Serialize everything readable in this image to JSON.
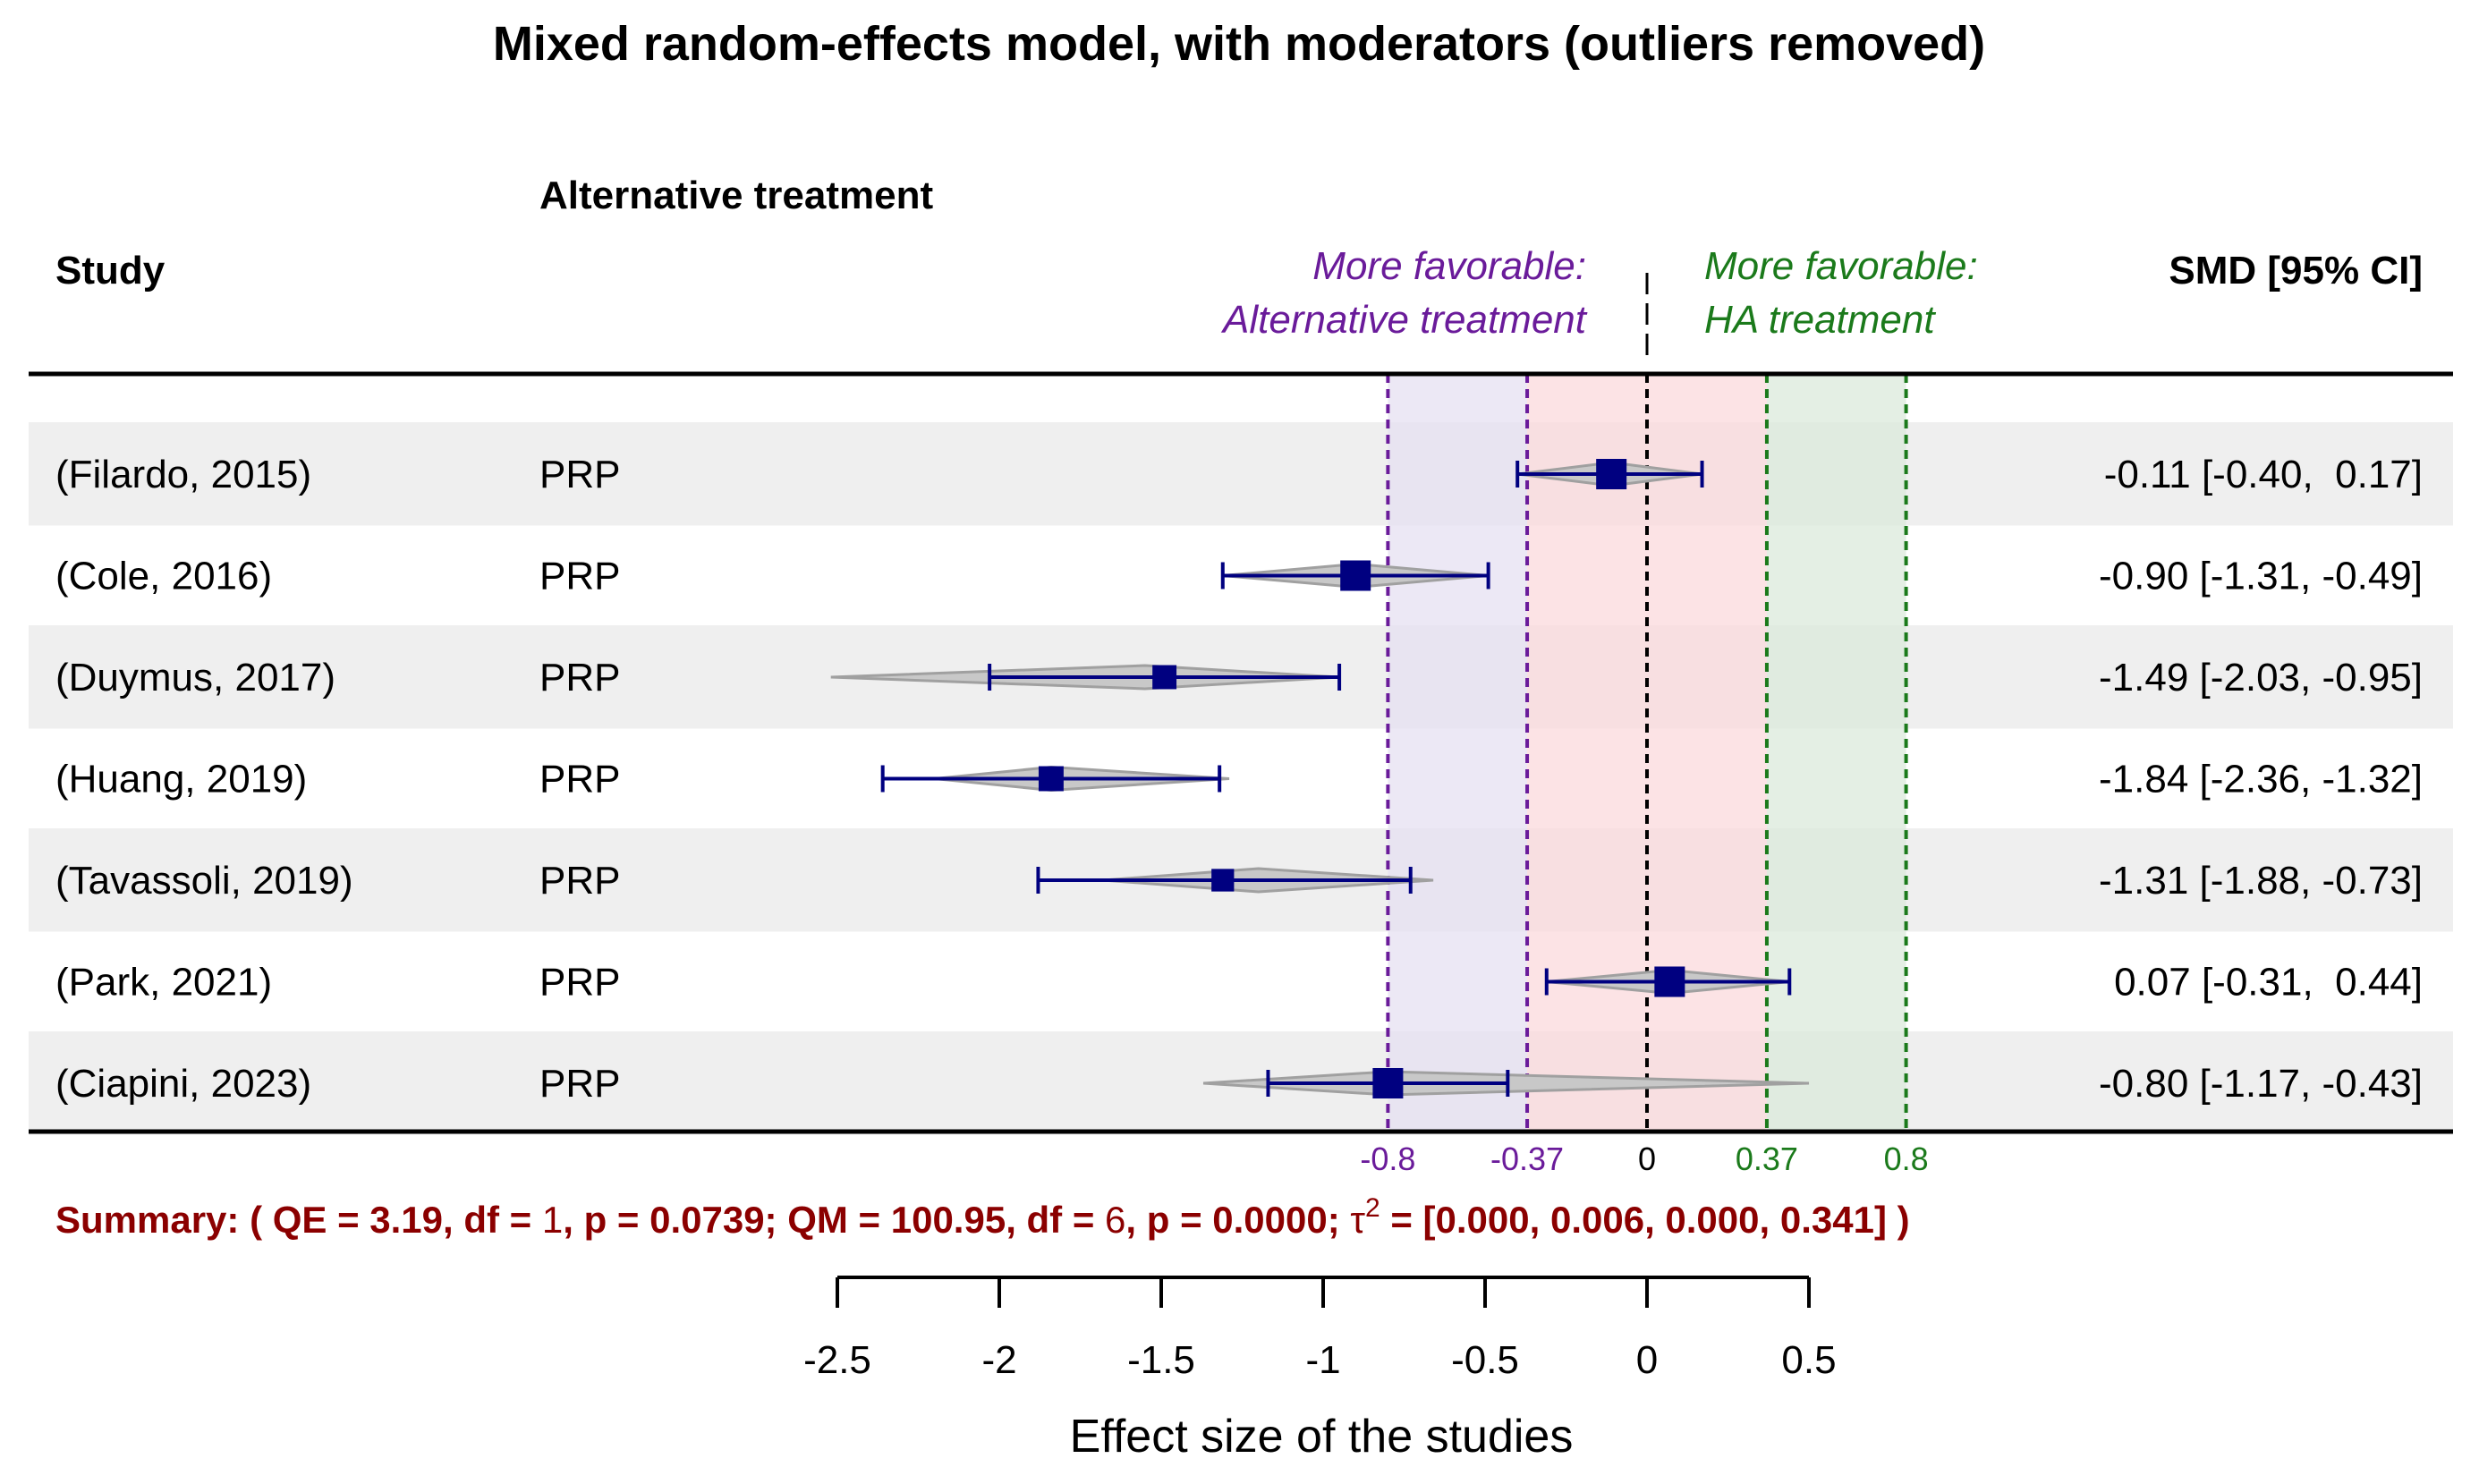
{
  "chart_data": {
    "type": "forest",
    "title": "Mixed random-effects model, with moderators (outliers removed)",
    "headers": {
      "study": "Study",
      "moderator": "Alternative treatment",
      "estimate": "SMD [95% CI]"
    },
    "favor_left": {
      "line1": "More favorable:",
      "line2": "Alternative treatment"
    },
    "favor_right": {
      "line1": "More favorable:",
      "line2": "HA treatment"
    },
    "studies": [
      {
        "study": "(Filardo, 2015)",
        "treatment": "PRP",
        "smd": -0.11,
        "lower": -0.4,
        "upper": 0.17,
        "label": "-0.11 [-0.40,  0.17]",
        "pred_center": -0.11,
        "pred_low": -0.4,
        "pred_high": 0.17
      },
      {
        "study": "(Cole, 2016)",
        "treatment": "PRP",
        "smd": -0.9,
        "lower": -1.31,
        "upper": -0.49,
        "label": "-0.90 [-1.31, -0.49]",
        "pred_center": -0.9,
        "pred_low": -1.31,
        "pred_high": -0.49
      },
      {
        "study": "(Duymus, 2017)",
        "treatment": "PRP",
        "smd": -1.49,
        "lower": -2.03,
        "upper": -0.95,
        "label": "-1.49 [-2.03, -0.95]",
        "pred_center": -1.55,
        "pred_low": -2.52,
        "pred_high": -0.95
      },
      {
        "study": "(Huang, 2019)",
        "treatment": "PRP",
        "smd": -1.84,
        "lower": -2.36,
        "upper": -1.32,
        "label": "-1.84 [-2.36, -1.32]",
        "pred_center": -1.84,
        "pred_low": -2.2,
        "pred_high": -1.29
      },
      {
        "study": "(Tavassoli, 2019)",
        "treatment": "PRP",
        "smd": -1.31,
        "lower": -1.88,
        "upper": -0.73,
        "label": "-1.31 [-1.88, -0.73]",
        "pred_center": -1.2,
        "pred_low": -1.68,
        "pred_high": -0.66
      },
      {
        "study": "(Park, 2021)",
        "treatment": "PRP",
        "smd": 0.07,
        "lower": -0.31,
        "upper": 0.44,
        "label": "0.07 [-0.31,  0.44]",
        "pred_center": 0.07,
        "pred_low": -0.31,
        "pred_high": 0.44
      },
      {
        "study": "(Ciapini, 2023)",
        "treatment": "PRP",
        "smd": -0.8,
        "lower": -1.17,
        "upper": -0.43,
        "label": "-0.80 [-1.17, -0.43]",
        "pred_center": -0.8,
        "pred_low": -1.37,
        "pred_high": 0.5
      }
    ],
    "reference_lines": [
      {
        "value": -0.8,
        "label": "-0.8",
        "color": "#6a1b9a"
      },
      {
        "value": -0.37,
        "label": "-0.37",
        "color": "#6a1b9a"
      },
      {
        "value": 0,
        "label": "0",
        "color": "#000000"
      },
      {
        "value": 0.37,
        "label": "0.37",
        "color": "#1b7a1b"
      },
      {
        "value": 0.8,
        "label": "0.8",
        "color": "#1b7a1b"
      }
    ],
    "summary": {
      "prefix": "Summary: ( QE = 3.19, df = ",
      "df1": "1",
      "mid": ", p = 0.0739; QM = 100.95, df = ",
      "df2": "6",
      "tail": ", p = 0.0000; ",
      "tau": "τ",
      "tau_sup": "2",
      "values": " = [0.000, 0.006, 0.000, 0.341] )"
    },
    "x_axis": {
      "label": "Effect size of the studies",
      "ticks": [
        -2.5,
        -2,
        -1.5,
        -1,
        -0.5,
        0,
        0.5
      ],
      "tick_labels": [
        "-2.5",
        "-2",
        "-1.5",
        "-1",
        "-0.5",
        "0",
        "0.5"
      ],
      "range": [
        -2.5,
        0.5
      ]
    },
    "colors": {
      "point": "#000080",
      "ci": "#000080",
      "diamond_fill": "#c8c8c8",
      "diamond_stroke": "#a0a0a0",
      "purple": "#6a1b9a",
      "green": "#1b7a1b",
      "summary": "#8b0000",
      "band_purple": "#e6e0f2",
      "band_red": "#fbd9dc",
      "band_green": "#dbe9db",
      "row_shade": "#efefef"
    }
  }
}
